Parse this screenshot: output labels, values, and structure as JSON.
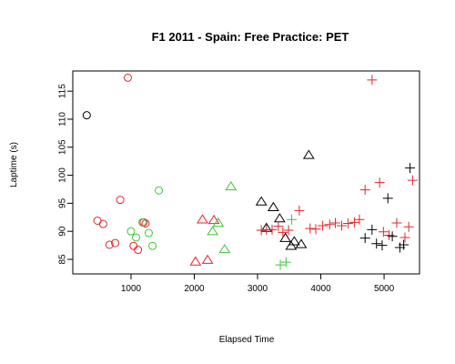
{
  "chart_data": {
    "type": "scatter",
    "title": "F1 2011 - Spain: Free Practice: PET",
    "xlabel": "Elapsed Time",
    "ylabel": "Laptime (s)",
    "xlim": [
      80,
      5560
    ],
    "ylim": [
      82.4,
      118.6
    ],
    "xticks": [
      1000,
      2000,
      3000,
      4000,
      5000
    ],
    "yticks": [
      85,
      90,
      95,
      100,
      105,
      110,
      115
    ],
    "grid": false,
    "legend": "none",
    "series": [
      {
        "color": "#000000",
        "shape": "circle",
        "points": [
          [
            300,
            110.7
          ]
        ]
      },
      {
        "color": "#e3262b",
        "shape": "circle",
        "points": [
          [
            950,
            117.4
          ],
          [
            830,
            95.6
          ],
          [
            470,
            91.9
          ],
          [
            560,
            91.3
          ],
          [
            660,
            87.6
          ],
          [
            750,
            87.9
          ],
          [
            1040,
            87.4
          ],
          [
            1110,
            86.7
          ],
          [
            1200,
            91.6
          ],
          [
            1230,
            91.4
          ]
        ]
      },
      {
        "color": "#3fc43a",
        "shape": "circle",
        "points": [
          [
            1440,
            97.3
          ],
          [
            1180,
            91.6
          ],
          [
            1000,
            90.0
          ],
          [
            1280,
            89.7
          ],
          [
            1080,
            88.9
          ],
          [
            1340,
            87.4
          ]
        ]
      },
      {
        "color": "#e3262b",
        "shape": "triangle",
        "points": [
          [
            2130,
            92.1
          ],
          [
            2310,
            92.0
          ],
          [
            2020,
            84.6
          ],
          [
            2210,
            84.9
          ]
        ]
      },
      {
        "color": "#3fc43a",
        "shape": "triangle",
        "points": [
          [
            2580,
            98.0
          ],
          [
            2380,
            91.5
          ],
          [
            2290,
            90.0
          ],
          [
            2480,
            86.8
          ]
        ]
      },
      {
        "color": "#000000",
        "shape": "triangle",
        "points": [
          [
            3810,
            103.6
          ],
          [
            3060,
            95.3
          ],
          [
            3250,
            94.3
          ],
          [
            3350,
            92.3
          ],
          [
            3140,
            90.6
          ],
          [
            3440,
            88.8
          ],
          [
            3580,
            88.2
          ],
          [
            3530,
            87.4
          ],
          [
            3690,
            87.7
          ]
        ]
      },
      {
        "color": "#e3262b",
        "shape": "plus",
        "points": [
          [
            4810,
            117.0
          ],
          [
            4930,
            98.7
          ],
          [
            4700,
            97.4
          ],
          [
            5450,
            99.1
          ],
          [
            3060,
            90.2
          ],
          [
            3140,
            90.3
          ],
          [
            3230,
            90.3
          ],
          [
            3330,
            90.9
          ],
          [
            3400,
            89.8
          ],
          [
            3490,
            90.2
          ],
          [
            3660,
            93.7
          ],
          [
            3830,
            90.5
          ],
          [
            3920,
            90.4
          ],
          [
            4030,
            91.0
          ],
          [
            4140,
            91.2
          ],
          [
            4230,
            91.5
          ],
          [
            4330,
            91.0
          ],
          [
            4430,
            91.4
          ],
          [
            4530,
            91.6
          ],
          [
            4610,
            92.1
          ],
          [
            4990,
            89.9
          ],
          [
            5080,
            89.3
          ],
          [
            5200,
            91.5
          ],
          [
            5330,
            88.9
          ],
          [
            5390,
            90.8
          ]
        ]
      },
      {
        "color": "#000000",
        "shape": "plus",
        "points": [
          [
            5410,
            101.3
          ],
          [
            5060,
            95.9
          ],
          [
            4810,
            90.3
          ],
          [
            4700,
            88.8
          ],
          [
            4880,
            87.8
          ],
          [
            4970,
            87.5
          ],
          [
            5130,
            89.1
          ],
          [
            5250,
            87.1
          ],
          [
            5310,
            87.6
          ]
        ]
      },
      {
        "color": "#3fc43a",
        "shape": "plus",
        "points": [
          [
            3540,
            92.1
          ],
          [
            3360,
            84.0
          ],
          [
            3450,
            84.5
          ]
        ]
      }
    ]
  }
}
